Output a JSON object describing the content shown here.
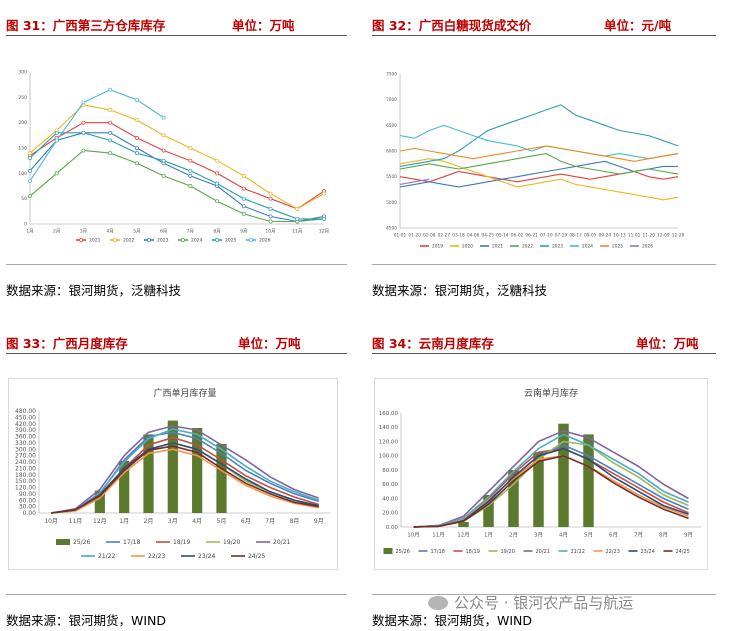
{
  "panels": [
    {
      "fig": "图 31：广西第三方仓库库存",
      "unit": "单位：万吨",
      "source": "数据来源：银河期货，泛糖科技"
    },
    {
      "fig": "图 32：广西白糖现货成交价",
      "unit": "单位：元/吨",
      "source": "数据来源：银河期货，泛糖科技"
    },
    {
      "fig": "图 33：广西月度库存",
      "unit": "单位：万吨",
      "source": "数据来源：银河期货，WIND"
    },
    {
      "fig": "图 34：云南月度库存",
      "unit": "单位：万吨",
      "source": "数据来源：银河期货，WIND"
    }
  ],
  "watermark": "公众号 · 银河农产品与航运",
  "chart_data": [
    {
      "type": "line",
      "title": "",
      "categories": [
        "1月",
        "2月",
        "3月",
        "4月",
        "5月",
        "6月",
        "7月",
        "8月",
        "9月",
        "10月",
        "11月",
        "12月"
      ],
      "ylim": [
        0,
        300
      ],
      "yticks": [
        "0",
        "50",
        "100",
        "150",
        "200",
        "250",
        "300"
      ],
      "grid": false,
      "legend_position": "bottom",
      "series": [
        {
          "name": "2021",
          "color": "#e0443e",
          "values": [
            135,
            170,
            200,
            200,
            170,
            145,
            125,
            100,
            70,
            50,
            30,
            65
          ]
        },
        {
          "name": "2022",
          "color": "#e8b923",
          "values": [
            140,
            185,
            235,
            225,
            205,
            175,
            150,
            125,
            95,
            60,
            30,
            60
          ]
        },
        {
          "name": "2023",
          "color": "#3a7bbf",
          "values": [
            105,
            165,
            180,
            180,
            150,
            120,
            95,
            75,
            35,
            15,
            5,
            15
          ]
        },
        {
          "name": "2024",
          "color": "#5aa64b",
          "values": [
            55,
            100,
            145,
            140,
            120,
            95,
            75,
            45,
            20,
            5,
            5,
            10
          ]
        },
        {
          "name": "2025",
          "color": "#2e9fb0",
          "values": [
            130,
            180,
            180,
            165,
            140,
            125,
            105,
            80,
            50,
            30,
            10,
            10
          ]
        },
        {
          "name": "2026",
          "color": "#4bb8d6",
          "values": [
            85,
            165,
            240,
            265,
            245,
            210,
            null,
            null,
            null,
            null,
            null,
            null
          ]
        }
      ]
    },
    {
      "type": "line",
      "title": "",
      "categories": [
        "01-01",
        "01-20",
        "02-08",
        "02-27",
        "03-18",
        "04-06",
        "04-25",
        "05-14",
        "06-02",
        "06-21",
        "07-10",
        "07-29",
        "08-17",
        "09-05",
        "09-24",
        "10-13",
        "11-01",
        "11-20",
        "12-09",
        "12-28"
      ],
      "ylim": [
        4500,
        7500
      ],
      "yticks": [
        "4500",
        "5000",
        "5500",
        "6000",
        "6500",
        "7000",
        "7500"
      ],
      "grid": false,
      "legend_position": "bottom",
      "series": [
        {
          "name": "2019",
          "color": "#e0443e",
          "values": [
            5500,
            5450,
            5400,
            5500,
            5600,
            5550,
            5500,
            5450,
            5400,
            5450,
            5500,
            5550,
            5500,
            5450,
            5500,
            5550,
            5600,
            5500,
            5450,
            5500
          ]
        },
        {
          "name": "2020",
          "color": "#e8b923",
          "values": [
            5750,
            5800,
            5850,
            5800,
            5700,
            5600,
            5500,
            5400,
            5300,
            5350,
            5400,
            5450,
            5350,
            5300,
            5250,
            5200,
            5150,
            5100,
            5050,
            5100
          ]
        },
        {
          "name": "2021",
          "color": "#3a7bbf",
          "values": [
            5300,
            5350,
            5400,
            5350,
            5300,
            5350,
            5400,
            5450,
            5500,
            5550,
            5600,
            5650,
            5700,
            5750,
            5800,
            5700,
            5600,
            5650,
            5700,
            5700
          ]
        },
        {
          "name": "2022",
          "color": "#5aa64b",
          "values": [
            5650,
            5700,
            5750,
            5700,
            5650,
            5700,
            5750,
            5800,
            5850,
            5900,
            5950,
            5800,
            5700,
            5650,
            5600,
            5550,
            5600,
            5650,
            5600,
            5550
          ]
        },
        {
          "name": "2023",
          "color": "#2e9fb0",
          "values": [
            5700,
            5750,
            5800,
            5850,
            6000,
            6200,
            6400,
            6500,
            6600,
            6700,
            6800,
            6900,
            6700,
            6600,
            6500,
            6400,
            6350,
            6300,
            6200,
            6100
          ]
        },
        {
          "name": "2024",
          "color": "#4bb8d6",
          "values": [
            6300,
            6250,
            6400,
            6500,
            6400,
            6300,
            6200,
            6150,
            6100,
            6000,
            6100,
            6050,
            6000,
            5950,
            5900,
            5950,
            5900,
            5850,
            5900,
            5950
          ]
        },
        {
          "name": "2025",
          "color": "#f08a24",
          "values": [
            6000,
            6050,
            6000,
            5950,
            5900,
            5850,
            5900,
            5950,
            6000,
            6050,
            6100,
            6050,
            6000,
            5950,
            5900,
            5850,
            5800,
            5850,
            5900,
            5950
          ]
        },
        {
          "name": "2026",
          "color": "#8f79b8",
          "values": [
            5350,
            5400,
            5450,
            null,
            null,
            null,
            null,
            null,
            null,
            null,
            null,
            null,
            null,
            null,
            null,
            null,
            null,
            null,
            null,
            null
          ]
        }
      ]
    },
    {
      "type": "bar+line",
      "title": "广西单月库存量",
      "categories": [
        "10月",
        "11月",
        "12月",
        "1月",
        "2月",
        "3月",
        "4月",
        "5月",
        "6月",
        "7月",
        "8月",
        "9月"
      ],
      "ylim": [
        0,
        480
      ],
      "yticks": [
        "0.00",
        "30.00",
        "60.00",
        "90.00",
        "120.00",
        "150.00",
        "180.00",
        "210.00",
        "240.00",
        "270.00",
        "300.00",
        "330.00",
        "360.00",
        "390.00",
        "420.00",
        "450.00",
        "480.00"
      ],
      "grid": false,
      "legend_position": "bottom",
      "bar_series": {
        "name": "25/26",
        "color": "#5b7a2e",
        "values": [
          null,
          null,
          105,
          245,
          370,
          435,
          400,
          325,
          null,
          null,
          null,
          null
        ]
      },
      "series": [
        {
          "name": "17/18",
          "color": "#4e81bd",
          "values": [
            0,
            15,
            90,
            250,
            360,
            380,
            350,
            280,
            200,
            140,
            90,
            55
          ]
        },
        {
          "name": "18/19",
          "color": "#c0504d",
          "values": [
            0,
            15,
            80,
            210,
            320,
            355,
            320,
            250,
            175,
            120,
            75,
            40
          ]
        },
        {
          "name": "19/20",
          "color": "#9bbb59",
          "values": [
            0,
            10,
            75,
            200,
            300,
            330,
            300,
            230,
            150,
            100,
            60,
            35
          ]
        },
        {
          "name": "20/21",
          "color": "#8064a2",
          "values": [
            0,
            20,
            110,
            270,
            380,
            410,
            390,
            320,
            250,
            170,
            110,
            70
          ]
        },
        {
          "name": "21/22",
          "color": "#4bacc6",
          "values": [
            0,
            15,
            95,
            240,
            350,
            395,
            370,
            300,
            220,
            150,
            100,
            60
          ]
        },
        {
          "name": "22/23",
          "color": "#f79646",
          "values": [
            0,
            10,
            70,
            190,
            280,
            300,
            270,
            200,
            130,
            80,
            45,
            25
          ]
        },
        {
          "name": "23/24",
          "color": "#2c4d75",
          "values": [
            0,
            15,
            85,
            210,
            300,
            330,
            300,
            230,
            160,
            100,
            60,
            35
          ]
        },
        {
          "name": "24/25",
          "color": "#772c2a",
          "values": [
            0,
            15,
            80,
            200,
            295,
            315,
            285,
            210,
            140,
            90,
            50,
            30
          ]
        }
      ]
    },
    {
      "type": "bar+line",
      "title": "云南单月库存",
      "categories": [
        "10月",
        "11月",
        "12月",
        "1月",
        "2月",
        "3月",
        "4月",
        "5月",
        "6月",
        "7月",
        "8月",
        "9月"
      ],
      "ylim": [
        0,
        160
      ],
      "yticks": [
        "0.00",
        "20.00",
        "40.00",
        "60.00",
        "80.00",
        "100.00",
        "120.00",
        "140.00",
        "160.00"
      ],
      "grid": false,
      "legend_position": "bottom",
      "bar_series": {
        "name": "25/26",
        "color": "#5b7a2e",
        "values": [
          null,
          null,
          7,
          45,
          80,
          105,
          145,
          130,
          null,
          null,
          null,
          null
        ]
      },
      "series": [
        {
          "name": "17/18",
          "color": "#4e81bd",
          "values": [
            0,
            2,
            10,
            35,
            70,
            100,
            115,
            100,
            80,
            60,
            40,
            25
          ]
        },
        {
          "name": "18/19",
          "color": "#c0504d",
          "values": [
            0,
            2,
            12,
            40,
            75,
            105,
            110,
            95,
            75,
            55,
            35,
            20
          ]
        },
        {
          "name": "19/20",
          "color": "#9bbb59",
          "values": [
            0,
            1,
            8,
            30,
            60,
            95,
            120,
            115,
            90,
            70,
            45,
            30
          ]
        },
        {
          "name": "20/21",
          "color": "#8064a2",
          "values": [
            0,
            2,
            15,
            50,
            85,
            120,
            135,
            125,
            105,
            85,
            60,
            40
          ]
        },
        {
          "name": "21/22",
          "color": "#4bacc6",
          "values": [
            0,
            2,
            12,
            42,
            78,
            110,
            130,
            115,
            95,
            75,
            50,
            35
          ]
        },
        {
          "name": "22/23",
          "color": "#f79646",
          "values": [
            0,
            1,
            10,
            38,
            68,
            95,
            100,
            85,
            65,
            45,
            28,
            15
          ]
        },
        {
          "name": "23/24",
          "color": "#2c4d75",
          "values": [
            0,
            1,
            9,
            36,
            70,
            100,
            110,
            95,
            70,
            50,
            30,
            18
          ]
        },
        {
          "name": "24/25",
          "color": "#772c2a",
          "values": [
            0,
            1,
            8,
            32,
            65,
            92,
            100,
            85,
            62,
            42,
            25,
            12
          ]
        }
      ]
    }
  ]
}
